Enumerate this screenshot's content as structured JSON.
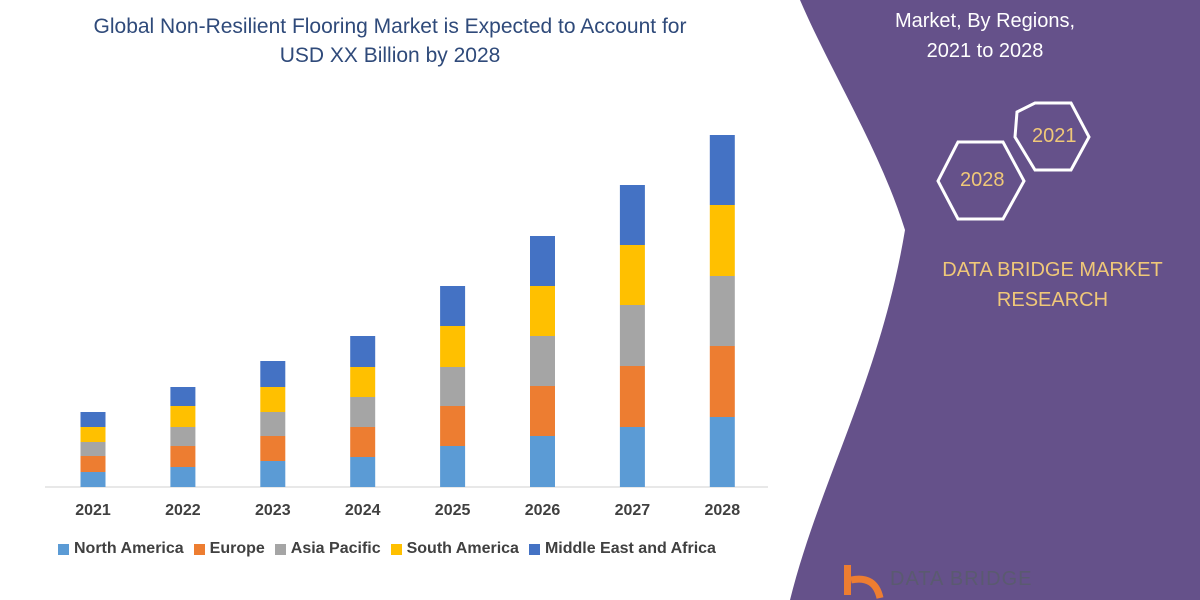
{
  "header": {
    "title_line1": "Global Non-Resilient Flooring Market is Expected to Account for",
    "title_line2": "USD XX Billion by 2028"
  },
  "panel": {
    "title_line1": "Market, By Regions,",
    "title_line2": "2021 to 2028",
    "hex_2021": "2021",
    "hex_2028": "2028",
    "brand_line1": "DATA BRIDGE MARKET",
    "brand_line2": "RESEARCH",
    "logo_text": "DATA BRIDGE",
    "bg_color": "#65518a",
    "accent_color": "#f0c878"
  },
  "chart_data": {
    "type": "bar",
    "stacked": true,
    "title": "Global Non-Resilient Flooring Market is Expected to Account for USD XX Billion by 2028",
    "xlabel": "",
    "ylabel": "",
    "y_axis_shown": false,
    "grid": false,
    "legend_position": "bottom",
    "ylim": [
      0,
      360
    ],
    "categories": [
      "2021",
      "2022",
      "2023",
      "2024",
      "2025",
      "2026",
      "2027",
      "2028"
    ],
    "series": [
      {
        "name": "North America",
        "color": "#5b9bd5",
        "values": [
          15,
          20,
          26,
          30,
          41,
          51,
          60,
          70
        ]
      },
      {
        "name": "Europe",
        "color": "#ed7d31",
        "values": [
          16,
          21,
          25,
          30,
          40,
          50,
          61,
          71
        ]
      },
      {
        "name": "Asia Pacific",
        "color": "#a5a5a5",
        "values": [
          14,
          19,
          24,
          30,
          39,
          50,
          61,
          70
        ]
      },
      {
        "name": "South America",
        "color": "#ffc000",
        "values": [
          15,
          21,
          25,
          30,
          41,
          50,
          60,
          71
        ]
      },
      {
        "name": "Middle East and Africa",
        "color": "#4472c4",
        "values": [
          15,
          19,
          26,
          31,
          40,
          50,
          60,
          70
        ]
      }
    ]
  }
}
